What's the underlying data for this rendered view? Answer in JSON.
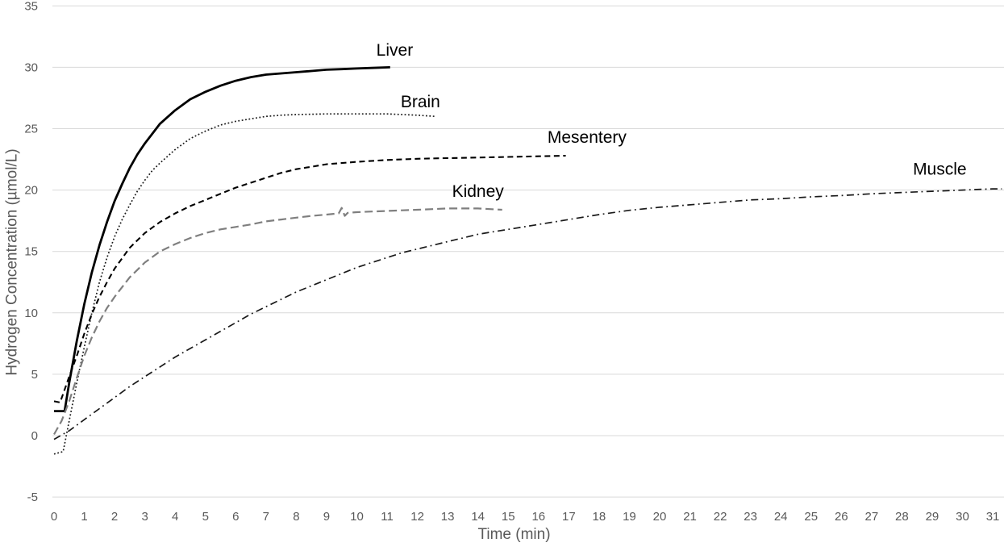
{
  "chart_data": {
    "type": "line",
    "title": "",
    "xlabel": "Time (min)",
    "ylabel": "Hydrogen Concentration (µmol/L)",
    "xlim": [
      0,
      31.5
    ],
    "ylim": [
      -5,
      35
    ],
    "x_ticks": [
      0,
      1,
      2,
      3,
      4,
      5,
      6,
      7,
      8,
      9,
      10,
      11,
      12,
      13,
      14,
      15,
      16,
      17,
      18,
      19,
      20,
      21,
      22,
      23,
      24,
      25,
      26,
      27,
      28,
      29,
      30,
      31
    ],
    "y_ticks": [
      -5,
      0,
      5,
      10,
      15,
      20,
      25,
      30,
      35
    ],
    "grid": "horizontal-only",
    "legend": "inline-labels",
    "gridline_color": "#d9d9d9",
    "axis_text_color": "#595959",
    "label_text_color": "#000000",
    "series": [
      {
        "name": "Liver",
        "style": "solid",
        "color": "#000000",
        "label_pos": {
          "x": 11.25,
          "y": 31.4
        },
        "points": [
          [
            0,
            2
          ],
          [
            0.35,
            2
          ],
          [
            0.5,
            4.3
          ],
          [
            0.75,
            7.7
          ],
          [
            1,
            10.7
          ],
          [
            1.25,
            13.3
          ],
          [
            1.5,
            15.5
          ],
          [
            1.75,
            17.4
          ],
          [
            2,
            19.1
          ],
          [
            2.25,
            20.5
          ],
          [
            2.5,
            21.8
          ],
          [
            2.75,
            22.9
          ],
          [
            3,
            23.8
          ],
          [
            3.25,
            24.6
          ],
          [
            3.5,
            25.4
          ],
          [
            4,
            26.5
          ],
          [
            4.5,
            27.4
          ],
          [
            5,
            28
          ],
          [
            5.5,
            28.5
          ],
          [
            6,
            28.9
          ],
          [
            6.5,
            29.2
          ],
          [
            7,
            29.4
          ],
          [
            7.5,
            29.5
          ],
          [
            8,
            29.6
          ],
          [
            8.5,
            29.7
          ],
          [
            9,
            29.8
          ],
          [
            9.5,
            29.85
          ],
          [
            10,
            29.9
          ],
          [
            10.5,
            29.95
          ],
          [
            11.1,
            30
          ]
        ]
      },
      {
        "name": "Brain",
        "style": "dotted",
        "color": "#1a1a1a",
        "label_pos": {
          "x": 12.1,
          "y": 27.2
        },
        "points": [
          [
            0,
            -1.5
          ],
          [
            0.3,
            -1.3
          ],
          [
            0.5,
            1.2
          ],
          [
            0.75,
            4.3
          ],
          [
            1,
            7.2
          ],
          [
            1.25,
            10
          ],
          [
            1.5,
            12.5
          ],
          [
            1.75,
            14.5
          ],
          [
            2,
            16.2
          ],
          [
            2.25,
            17.6
          ],
          [
            2.5,
            18.8
          ],
          [
            2.75,
            19.9
          ],
          [
            3,
            20.8
          ],
          [
            3.25,
            21.6
          ],
          [
            3.5,
            22.2
          ],
          [
            4,
            23.3
          ],
          [
            4.5,
            24.2
          ],
          [
            5,
            24.8
          ],
          [
            5.5,
            25.3
          ],
          [
            6,
            25.6
          ],
          [
            6.5,
            25.8
          ],
          [
            7,
            26
          ],
          [
            7.5,
            26.1
          ],
          [
            8,
            26.15
          ],
          [
            9,
            26.2
          ],
          [
            10,
            26.2
          ],
          [
            11,
            26.2
          ],
          [
            12,
            26.1
          ],
          [
            12.6,
            26
          ]
        ]
      },
      {
        "name": "Mesentery",
        "style": "dashed",
        "color": "#000000",
        "label_pos": {
          "x": 17.6,
          "y": 24.3
        },
        "points": [
          [
            0,
            2.8
          ],
          [
            0.2,
            2.7
          ],
          [
            0.5,
            4.8
          ],
          [
            0.75,
            6.5
          ],
          [
            1,
            8.3
          ],
          [
            1.25,
            9.9
          ],
          [
            1.5,
            11.3
          ],
          [
            1.75,
            12.5
          ],
          [
            2,
            13.6
          ],
          [
            2.5,
            15.3
          ],
          [
            3,
            16.5
          ],
          [
            3.5,
            17.4
          ],
          [
            4,
            18.1
          ],
          [
            4.5,
            18.7
          ],
          [
            5,
            19.2
          ],
          [
            5.5,
            19.7
          ],
          [
            6,
            20.2
          ],
          [
            6.5,
            20.6
          ],
          [
            7,
            21
          ],
          [
            7.5,
            21.4
          ],
          [
            8,
            21.7
          ],
          [
            8.5,
            21.9
          ],
          [
            9,
            22.1
          ],
          [
            9.5,
            22.2
          ],
          [
            10,
            22.3
          ],
          [
            11,
            22.45
          ],
          [
            12,
            22.55
          ],
          [
            13,
            22.6
          ],
          [
            14,
            22.65
          ],
          [
            15,
            22.7
          ],
          [
            16,
            22.75
          ],
          [
            16.9,
            22.8
          ]
        ]
      },
      {
        "name": "Kidney",
        "style": "long-dash",
        "color": "#7f7f7f",
        "label_pos": {
          "x": 14.0,
          "y": 19.9
        },
        "points": [
          [
            0,
            0.1
          ],
          [
            0.25,
            1.2
          ],
          [
            0.5,
            2.8
          ],
          [
            0.75,
            4.7
          ],
          [
            1,
            6.5
          ],
          [
            1.25,
            8
          ],
          [
            1.5,
            9.3
          ],
          [
            1.75,
            10.4
          ],
          [
            2,
            11.3
          ],
          [
            2.5,
            12.9
          ],
          [
            3,
            14.1
          ],
          [
            3.5,
            15
          ],
          [
            4,
            15.6
          ],
          [
            4.5,
            16.1
          ],
          [
            5,
            16.5
          ],
          [
            5.5,
            16.8
          ],
          [
            6,
            17
          ],
          [
            6.5,
            17.2
          ],
          [
            7,
            17.45
          ],
          [
            7.5,
            17.6
          ],
          [
            8,
            17.75
          ],
          [
            8.5,
            17.9
          ],
          [
            9,
            18
          ],
          [
            9.4,
            18.1
          ],
          [
            9.5,
            18.55
          ],
          [
            9.6,
            17.9
          ],
          [
            9.7,
            18.15
          ],
          [
            10,
            18.2
          ],
          [
            10.5,
            18.25
          ],
          [
            11,
            18.3
          ],
          [
            11.5,
            18.35
          ],
          [
            12,
            18.4
          ],
          [
            12.5,
            18.45
          ],
          [
            13,
            18.5
          ],
          [
            13.5,
            18.5
          ],
          [
            14,
            18.5
          ],
          [
            14.4,
            18.45
          ],
          [
            14.8,
            18.4
          ]
        ]
      },
      {
        "name": "Muscle",
        "style": "dash-dot",
        "color": "#1a1a1a",
        "label_pos": {
          "x": 29.25,
          "y": 21.7
        },
        "points": [
          [
            0,
            -0.3
          ],
          [
            0.5,
            0.4
          ],
          [
            1,
            1.3
          ],
          [
            1.5,
            2.2
          ],
          [
            2,
            3.1
          ],
          [
            2.5,
            4
          ],
          [
            3,
            4.8
          ],
          [
            3.5,
            5.6
          ],
          [
            4,
            6.4
          ],
          [
            4.5,
            7.1
          ],
          [
            5,
            7.8
          ],
          [
            5.5,
            8.5
          ],
          [
            6,
            9.2
          ],
          [
            6.5,
            9.9
          ],
          [
            7,
            10.5
          ],
          [
            7.5,
            11.1
          ],
          [
            8,
            11.7
          ],
          [
            8.5,
            12.2
          ],
          [
            9,
            12.7
          ],
          [
            9.5,
            13.2
          ],
          [
            10,
            13.7
          ],
          [
            10.5,
            14.1
          ],
          [
            11,
            14.5
          ],
          [
            11.5,
            14.9
          ],
          [
            12,
            15.2
          ],
          [
            12.5,
            15.5
          ],
          [
            13,
            15.8
          ],
          [
            13.5,
            16.1
          ],
          [
            14,
            16.4
          ],
          [
            14.5,
            16.6
          ],
          [
            15,
            16.8
          ],
          [
            15.5,
            17
          ],
          [
            16,
            17.2
          ],
          [
            16.5,
            17.4
          ],
          [
            17,
            17.6
          ],
          [
            18,
            18
          ],
          [
            19,
            18.35
          ],
          [
            20,
            18.6
          ],
          [
            21,
            18.8
          ],
          [
            22,
            19
          ],
          [
            23,
            19.2
          ],
          [
            24,
            19.3
          ],
          [
            25,
            19.45
          ],
          [
            26,
            19.55
          ],
          [
            27,
            19.7
          ],
          [
            28,
            19.8
          ],
          [
            29,
            19.9
          ],
          [
            30,
            20
          ],
          [
            31,
            20.1
          ],
          [
            31.3,
            20.1
          ]
        ]
      }
    ]
  }
}
